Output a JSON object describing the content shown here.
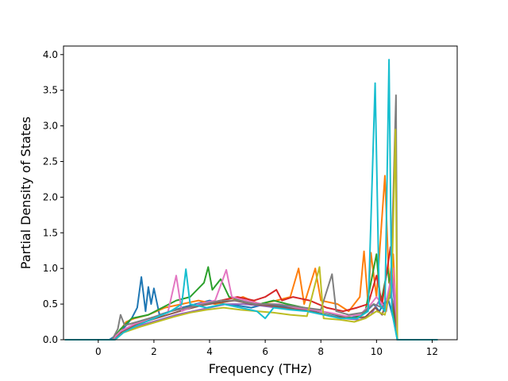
{
  "chart_data": {
    "type": "line",
    "title": "",
    "xlabel": "Frequency (THz)",
    "ylabel": "Partial Density of States",
    "xlim": [
      -1.25,
      12.9
    ],
    "ylim": [
      0,
      4.12
    ],
    "xticks": [
      0,
      2,
      4,
      6,
      8,
      10,
      12
    ],
    "xtick_labels": [
      "0",
      "2",
      "4",
      "6",
      "8",
      "10",
      "12"
    ],
    "yticks": [
      0.0,
      0.5,
      1.0,
      1.5,
      2.0,
      2.5,
      3.0,
      3.5,
      4.0
    ],
    "ytick_labels": [
      "0.0",
      "0.5",
      "1.0",
      "1.5",
      "2.0",
      "2.5",
      "3.0",
      "3.5",
      "4.0"
    ],
    "grid": false,
    "legend": "none",
    "colors": [
      "#1f77b4",
      "#ff7f0e",
      "#2ca02c",
      "#d62728",
      "#9467bd",
      "#8c564b",
      "#e377c2",
      "#7f7f7f",
      "#bcbd22",
      "#17becf"
    ],
    "series": [
      {
        "color": "#1f77b4",
        "points": [
          [
            -1.2,
            0
          ],
          [
            0.4,
            0
          ],
          [
            0.6,
            0.05
          ],
          [
            0.8,
            0.12
          ],
          [
            1.0,
            0.2
          ],
          [
            1.2,
            0.3
          ],
          [
            1.4,
            0.45
          ],
          [
            1.55,
            0.88
          ],
          [
            1.7,
            0.4
          ],
          [
            1.8,
            0.74
          ],
          [
            1.9,
            0.5
          ],
          [
            2.0,
            0.72
          ],
          [
            2.2,
            0.35
          ],
          [
            2.6,
            0.4
          ],
          [
            3.0,
            0.45
          ],
          [
            3.5,
            0.5
          ],
          [
            4.0,
            0.55
          ],
          [
            4.5,
            0.5
          ],
          [
            5.0,
            0.48
          ],
          [
            5.5,
            0.45
          ],
          [
            6.0,
            0.5
          ],
          [
            6.5,
            0.48
          ],
          [
            7.0,
            0.45
          ],
          [
            7.5,
            0.42
          ],
          [
            8.0,
            0.4
          ],
          [
            8.5,
            0.35
          ],
          [
            9.0,
            0.3
          ],
          [
            9.5,
            0.35
          ],
          [
            9.9,
            0.5
          ],
          [
            10.1,
            0.4
          ],
          [
            10.4,
            0.6
          ],
          [
            10.6,
            0.3
          ],
          [
            10.75,
            0
          ],
          [
            12.2,
            0
          ]
        ]
      },
      {
        "color": "#ff7f0e",
        "points": [
          [
            -1.2,
            0
          ],
          [
            0.5,
            0
          ],
          [
            0.7,
            0.08
          ],
          [
            1.0,
            0.25
          ],
          [
            1.3,
            0.3
          ],
          [
            1.8,
            0.35
          ],
          [
            2.4,
            0.45
          ],
          [
            3.0,
            0.5
          ],
          [
            3.6,
            0.55
          ],
          [
            4.2,
            0.5
          ],
          [
            4.8,
            0.55
          ],
          [
            5.2,
            0.6
          ],
          [
            5.8,
            0.5
          ],
          [
            6.4,
            0.55
          ],
          [
            6.9,
            0.6
          ],
          [
            7.2,
            1.0
          ],
          [
            7.4,
            0.5
          ],
          [
            7.8,
            1.0
          ],
          [
            8.0,
            0.55
          ],
          [
            8.6,
            0.5
          ],
          [
            9.0,
            0.4
          ],
          [
            9.4,
            0.6
          ],
          [
            9.55,
            1.24
          ],
          [
            9.7,
            0.5
          ],
          [
            9.8,
            1.22
          ],
          [
            10.0,
            0.6
          ],
          [
            10.3,
            2.3
          ],
          [
            10.45,
            0.8
          ],
          [
            10.6,
            1.2
          ],
          [
            10.75,
            0
          ],
          [
            12.2,
            0
          ]
        ]
      },
      {
        "color": "#2ca02c",
        "points": [
          [
            -1.2,
            0
          ],
          [
            0.5,
            0
          ],
          [
            0.8,
            0.15
          ],
          [
            1.2,
            0.3
          ],
          [
            1.8,
            0.35
          ],
          [
            2.3,
            0.45
          ],
          [
            2.8,
            0.55
          ],
          [
            3.3,
            0.6
          ],
          [
            3.8,
            0.8
          ],
          [
            3.95,
            1.02
          ],
          [
            4.1,
            0.7
          ],
          [
            4.4,
            0.85
          ],
          [
            4.7,
            0.6
          ],
          [
            5.2,
            0.55
          ],
          [
            5.8,
            0.5
          ],
          [
            6.3,
            0.55
          ],
          [
            6.8,
            0.5
          ],
          [
            7.4,
            0.45
          ],
          [
            8.0,
            0.4
          ],
          [
            8.6,
            0.35
          ],
          [
            9.2,
            0.3
          ],
          [
            9.6,
            0.4
          ],
          [
            10.0,
            1.2
          ],
          [
            10.15,
            0.5
          ],
          [
            10.4,
            1.0
          ],
          [
            10.6,
            0.4
          ],
          [
            10.75,
            0
          ],
          [
            12.2,
            0
          ]
        ]
      },
      {
        "color": "#d62728",
        "points": [
          [
            -1.2,
            0
          ],
          [
            0.6,
            0
          ],
          [
            0.9,
            0.1
          ],
          [
            1.4,
            0.22
          ],
          [
            2.0,
            0.3
          ],
          [
            2.6,
            0.4
          ],
          [
            3.2,
            0.45
          ],
          [
            3.8,
            0.5
          ],
          [
            4.4,
            0.55
          ],
          [
            5.0,
            0.6
          ],
          [
            5.6,
            0.55
          ],
          [
            6.0,
            0.6
          ],
          [
            6.4,
            0.7
          ],
          [
            6.6,
            0.55
          ],
          [
            7.0,
            0.6
          ],
          [
            7.6,
            0.55
          ],
          [
            8.2,
            0.45
          ],
          [
            8.8,
            0.4
          ],
          [
            9.3,
            0.45
          ],
          [
            9.7,
            0.5
          ],
          [
            10.0,
            0.9
          ],
          [
            10.2,
            0.5
          ],
          [
            10.5,
            1.3
          ],
          [
            10.65,
            0.5
          ],
          [
            10.75,
            0
          ],
          [
            12.2,
            0
          ]
        ]
      },
      {
        "color": "#9467bd",
        "points": [
          [
            -1.2,
            0
          ],
          [
            0.6,
            0
          ],
          [
            0.9,
            0.12
          ],
          [
            1.5,
            0.2
          ],
          [
            2.2,
            0.28
          ],
          [
            2.8,
            0.35
          ],
          [
            3.4,
            0.4
          ],
          [
            4.0,
            0.45
          ],
          [
            4.6,
            0.5
          ],
          [
            5.2,
            0.5
          ],
          [
            5.8,
            0.48
          ],
          [
            6.4,
            0.45
          ],
          [
            7.0,
            0.42
          ],
          [
            7.6,
            0.4
          ],
          [
            8.2,
            0.35
          ],
          [
            8.8,
            0.3
          ],
          [
            9.4,
            0.28
          ],
          [
            9.8,
            0.35
          ],
          [
            10.1,
            0.55
          ],
          [
            10.35,
            0.4
          ],
          [
            10.55,
            0.9
          ],
          [
            10.7,
            0.3
          ],
          [
            10.75,
            0
          ],
          [
            12.2,
            0
          ]
        ]
      },
      {
        "color": "#8c564b",
        "points": [
          [
            -1.2,
            0
          ],
          [
            0.5,
            0
          ],
          [
            0.8,
            0.1
          ],
          [
            1.3,
            0.2
          ],
          [
            1.9,
            0.28
          ],
          [
            2.5,
            0.35
          ],
          [
            3.1,
            0.42
          ],
          [
            3.7,
            0.48
          ],
          [
            4.3,
            0.52
          ],
          [
            4.9,
            0.55
          ],
          [
            5.5,
            0.5
          ],
          [
            6.1,
            0.48
          ],
          [
            6.7,
            0.45
          ],
          [
            7.3,
            0.42
          ],
          [
            7.9,
            0.38
          ],
          [
            8.5,
            0.32
          ],
          [
            9.1,
            0.3
          ],
          [
            9.6,
            0.32
          ],
          [
            9.95,
            0.45
          ],
          [
            10.2,
            0.35
          ],
          [
            10.5,
            0.7
          ],
          [
            10.7,
            0.25
          ],
          [
            10.75,
            0
          ],
          [
            12.2,
            0
          ]
        ]
      },
      {
        "color": "#e377c2",
        "points": [
          [
            -1.2,
            0
          ],
          [
            0.5,
            0
          ],
          [
            0.8,
            0.12
          ],
          [
            1.3,
            0.22
          ],
          [
            1.9,
            0.3
          ],
          [
            2.5,
            0.38
          ],
          [
            2.8,
            0.9
          ],
          [
            3.0,
            0.4
          ],
          [
            3.6,
            0.5
          ],
          [
            4.2,
            0.55
          ],
          [
            4.6,
            0.98
          ],
          [
            4.8,
            0.6
          ],
          [
            5.3,
            0.55
          ],
          [
            5.9,
            0.5
          ],
          [
            6.5,
            0.5
          ],
          [
            7.1,
            0.45
          ],
          [
            7.7,
            0.42
          ],
          [
            8.3,
            0.38
          ],
          [
            8.9,
            0.33
          ],
          [
            9.4,
            0.35
          ],
          [
            9.8,
            0.5
          ],
          [
            10.0,
            0.6
          ],
          [
            10.3,
            0.45
          ],
          [
            10.6,
            1.0
          ],
          [
            10.72,
            0.3
          ],
          [
            10.75,
            0
          ],
          [
            12.2,
            0
          ]
        ]
      },
      {
        "color": "#7f7f7f",
        "points": [
          [
            -1.2,
            0
          ],
          [
            0.5,
            0
          ],
          [
            0.7,
            0.15
          ],
          [
            0.8,
            0.35
          ],
          [
            0.95,
            0.2
          ],
          [
            1.4,
            0.25
          ],
          [
            2.0,
            0.32
          ],
          [
            2.6,
            0.4
          ],
          [
            3.2,
            0.45
          ],
          [
            3.8,
            0.5
          ],
          [
            4.4,
            0.55
          ],
          [
            5.0,
            0.55
          ],
          [
            5.6,
            0.5
          ],
          [
            6.2,
            0.5
          ],
          [
            6.8,
            0.48
          ],
          [
            7.4,
            0.45
          ],
          [
            8.0,
            0.42
          ],
          [
            8.4,
            0.92
          ],
          [
            8.55,
            0.4
          ],
          [
            9.0,
            0.35
          ],
          [
            9.5,
            0.38
          ],
          [
            9.9,
            0.5
          ],
          [
            10.2,
            0.45
          ],
          [
            10.5,
            0.6
          ],
          [
            10.7,
            3.43
          ],
          [
            10.75,
            0
          ],
          [
            12.2,
            0
          ]
        ]
      },
      {
        "color": "#bcbd22",
        "points": [
          [
            -1.2,
            0
          ],
          [
            0.6,
            0
          ],
          [
            0.9,
            0.1
          ],
          [
            1.5,
            0.18
          ],
          [
            2.1,
            0.25
          ],
          [
            2.7,
            0.32
          ],
          [
            3.3,
            0.38
          ],
          [
            3.9,
            0.42
          ],
          [
            4.5,
            0.45
          ],
          [
            5.1,
            0.42
          ],
          [
            5.7,
            0.4
          ],
          [
            6.3,
            0.38
          ],
          [
            6.9,
            0.35
          ],
          [
            7.5,
            0.33
          ],
          [
            7.95,
            1.02
          ],
          [
            8.1,
            0.3
          ],
          [
            8.7,
            0.28
          ],
          [
            9.2,
            0.25
          ],
          [
            9.6,
            0.3
          ],
          [
            10.0,
            0.4
          ],
          [
            10.3,
            0.35
          ],
          [
            10.55,
            0.8
          ],
          [
            10.68,
            2.95
          ],
          [
            10.75,
            0
          ],
          [
            12.2,
            0
          ]
        ]
      },
      {
        "color": "#17becf",
        "points": [
          [
            -1.2,
            0
          ],
          [
            0.6,
            0
          ],
          [
            0.9,
            0.1
          ],
          [
            1.4,
            0.2
          ],
          [
            2.0,
            0.3
          ],
          [
            2.6,
            0.4
          ],
          [
            3.0,
            0.5
          ],
          [
            3.15,
            0.99
          ],
          [
            3.3,
            0.5
          ],
          [
            3.9,
            0.45
          ],
          [
            4.5,
            0.5
          ],
          [
            5.1,
            0.45
          ],
          [
            5.7,
            0.4
          ],
          [
            6.0,
            0.3
          ],
          [
            6.3,
            0.45
          ],
          [
            6.9,
            0.42
          ],
          [
            7.5,
            0.4
          ],
          [
            8.1,
            0.35
          ],
          [
            8.7,
            0.3
          ],
          [
            9.3,
            0.3
          ],
          [
            9.7,
            0.4
          ],
          [
            9.95,
            3.6
          ],
          [
            10.1,
            0.5
          ],
          [
            10.3,
            0.4
          ],
          [
            10.45,
            3.93
          ],
          [
            10.55,
            0.4
          ],
          [
            10.75,
            0
          ],
          [
            12.2,
            0
          ]
        ]
      }
    ]
  }
}
